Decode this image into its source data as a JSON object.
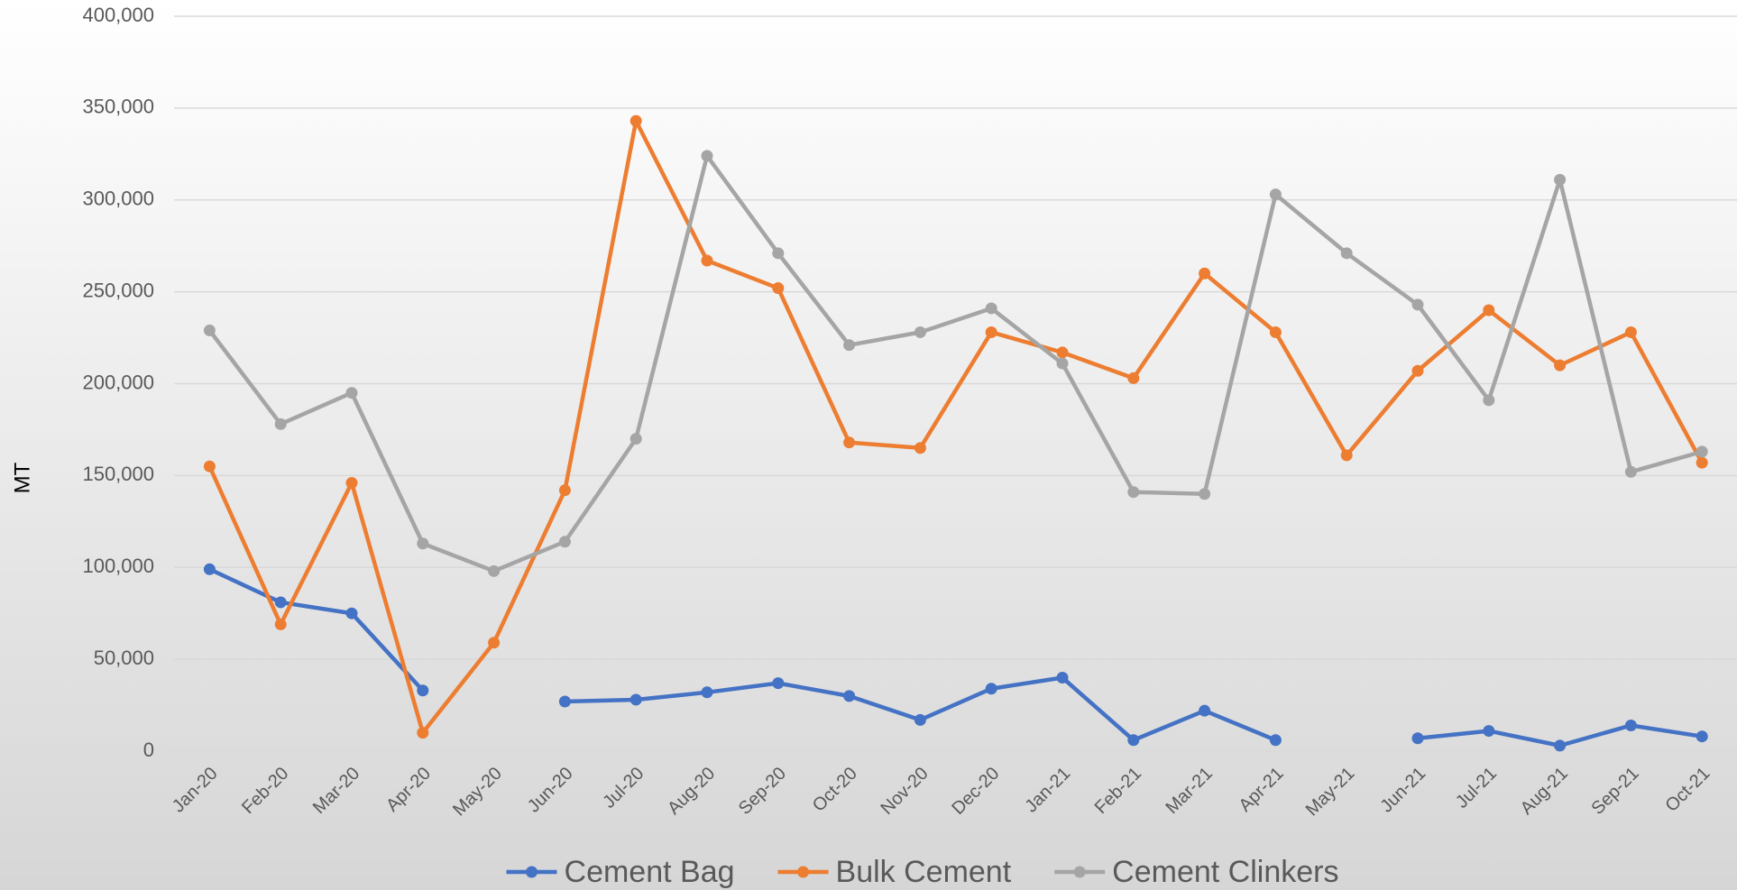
{
  "chart_data": {
    "type": "line",
    "y_axis_label": "MT",
    "categories": [
      "Jan-20",
      "Feb-20",
      "Mar-20",
      "Apr-20",
      "May-20",
      "Jun-20",
      "Jul-20",
      "Aug-20",
      "Sep-20",
      "Oct-20",
      "Nov-20",
      "Dec-20",
      "Jan-21",
      "Feb-21",
      "Mar-21",
      "Apr-21",
      "May-21",
      "Jun-21",
      "Jul-21",
      "Aug-21",
      "Sep-21",
      "Oct-21"
    ],
    "series": [
      {
        "name": "Cement Bag",
        "color": "#4472c4",
        "values": [
          99000,
          81000,
          75000,
          33000,
          null,
          27000,
          28000,
          32000,
          37000,
          30000,
          17000,
          34000,
          40000,
          6000,
          22000,
          6000,
          null,
          7000,
          11000,
          3000,
          14000,
          8000
        ]
      },
      {
        "name": "Bulk Cement",
        "color": "#ed7d31",
        "values": [
          155000,
          69000,
          146000,
          10000,
          59000,
          142000,
          343000,
          267000,
          252000,
          168000,
          165000,
          228000,
          217000,
          203000,
          260000,
          228000,
          161000,
          207000,
          240000,
          210000,
          228000,
          157000
        ]
      },
      {
        "name": "Cement Clinkers",
        "color": "#a5a5a5",
        "values": [
          229000,
          178000,
          195000,
          113000,
          98000,
          114000,
          170000,
          324000,
          271000,
          221000,
          228000,
          241000,
          211000,
          141000,
          140000,
          303000,
          271000,
          243000,
          191000,
          311000,
          152000,
          163000
        ]
      }
    ],
    "ylim": [
      0,
      400000
    ],
    "yticks": [
      0,
      {
        "value": 50000,
        "label": "50,000"
      },
      {
        "value": 100000,
        "label": "100,000"
      },
      {
        "value": 150000,
        "label": "150,000"
      },
      {
        "value": 200000,
        "label": "200,000"
      },
      {
        "value": 250000,
        "label": "250,000"
      },
      {
        "value": 300000,
        "label": "300,000"
      },
      {
        "value": 350000,
        "label": "350,000"
      },
      {
        "value": 400000,
        "label": "400,000"
      }
    ],
    "grid": true,
    "legend": "bottom"
  }
}
